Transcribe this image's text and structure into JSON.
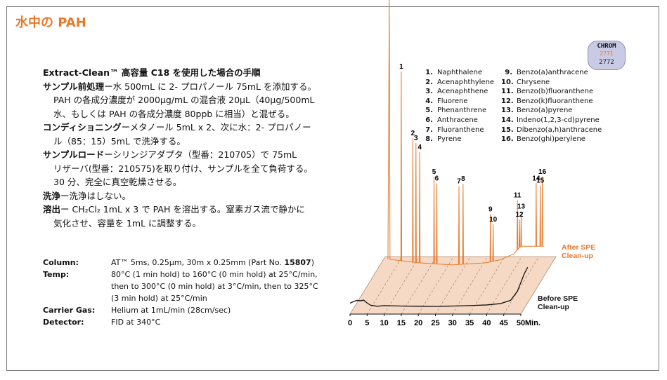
{
  "header": {
    "title": "水中の PAH"
  },
  "logo": {
    "line1": "CHROM",
    "line2": "2771",
    "line3": "2772"
  },
  "procedure": {
    "heading": "Extract-Clean™ 高容量 C18 を使用した場合の手順",
    "sample_prep": {
      "label": "サンプル前処理",
      "line1": "ー水 500mL に 2- プロパノール 75mL を添加する。",
      "line2": "PAH の各成分濃度が 2000μg/mL の混合液 20μL（40μg/500mL",
      "line3": "水、もしくは PAH の各成分濃度 80ppb に相当）と混ぜる。"
    },
    "conditioning": {
      "label": "コンディショニング",
      "line1": "ーメタノール 5mL x 2、次に水：2- プロパノー",
      "line2": "ル（85：15）5mL で洗浄する。"
    },
    "sample_load": {
      "label": "サンプルロード",
      "line1": "ーシリンジアダプタ（型番：210705）で 75mL",
      "line2": "リザーバ(型番：210575)を取り付け、サンプルを全て負荷する。",
      "line3": "30 分、完全に真空乾燥させる。"
    },
    "wash": {
      "label": "洗浄",
      "text": "ー洗浄はしない。"
    },
    "elution": {
      "label": "溶出",
      "line1": "ー CH₂Cl₂ 1mL x 3 で PAH を溶出する。窒素ガス流で静かに",
      "line2": "気化させ、容量を 1mL に調整する。"
    }
  },
  "conditions": {
    "column": {
      "label": "Column:",
      "value_pre": "AT™ 5ms, 0.25μm, 30m x 0.25mm (Part No. ",
      "part_no": "15807",
      "value_post": ")"
    },
    "temp": {
      "label": "Temp:",
      "lines": [
        "80°C (1 min hold) to 160°C (0 min hold) at 25°C/min,",
        "then to 300°C (0 min hold) at 3°C/min, then to 325°C",
        "(3 min hold) at 25°C/min"
      ]
    },
    "carrier_gas": {
      "label": "Carrier Gas:",
      "value": "Helium at 1mL/min (28cm/sec)"
    },
    "detector": {
      "label": "Detector:",
      "value": "FID at 340°C"
    }
  },
  "legend": {
    "items": [
      {
        "n": "1.",
        "name": "Naphthalene"
      },
      {
        "n": "2.",
        "name": "Acenaphthylene"
      },
      {
        "n": "3.",
        "name": "Acenaphthene"
      },
      {
        "n": "4.",
        "name": "Fluorene"
      },
      {
        "n": "5.",
        "name": "Phenanthrene"
      },
      {
        "n": "6.",
        "name": "Anthracene"
      },
      {
        "n": "7.",
        "name": "Fluoranthene"
      },
      {
        "n": "8.",
        "name": "Pyrene"
      },
      {
        "n": "9.",
        "name": "Benzo(a)anthracene"
      },
      {
        "n": "10.",
        "name": "Chrysene"
      },
      {
        "n": "11.",
        "name": "Benzo(b)fluoranthene"
      },
      {
        "n": "12.",
        "name": "Benzo(k)fluoranthene"
      },
      {
        "n": "13.",
        "name": "Benzo(a)pyrene"
      },
      {
        "n": "14.",
        "name": "Indeno(1,2,3-cd)pyrene"
      },
      {
        "n": "15.",
        "name": "Dibenzo(a,h)anthracene"
      },
      {
        "n": "16.",
        "name": "Benzo(ghi)perylene"
      }
    ]
  },
  "chart_data": {
    "type": "line",
    "xlabel": "Min.",
    "xlim": [
      0,
      50
    ],
    "x_ticks": [
      0,
      5,
      10,
      15,
      20,
      25,
      30,
      35,
      40,
      45,
      50
    ],
    "colors": {
      "after": "#e8792a",
      "before": "#111111",
      "plane": "#f6d9c4"
    },
    "series": [
      {
        "name": "After SPE Clean-up",
        "label_lines": [
          "After SPE",
          "Clean-up"
        ],
        "baseline": [
          [
            11.5,
            2
          ],
          [
            20,
            0.4
          ],
          [
            30,
            -0.6
          ],
          [
            40,
            0.4
          ],
          [
            44,
            1.8
          ],
          [
            48,
            4.5
          ],
          [
            50,
            8
          ]
        ],
        "peaks": [
          {
            "label": "1",
            "x": 15.0,
            "h": 87
          },
          {
            "label": "2",
            "x": 18.4,
            "h": 57
          },
          {
            "label": "3",
            "x": 19.3,
            "h": 55
          },
          {
            "label": "4",
            "x": 20.4,
            "h": 51
          },
          {
            "label": "5",
            "x": 24.6,
            "h": 40
          },
          {
            "label": "6",
            "x": 25.4,
            "h": 37
          },
          {
            "label": "7",
            "x": 31.9,
            "h": 36
          },
          {
            "label": "8",
            "x": 33.1,
            "h": 37
          },
          {
            "label": "9",
            "x": 41.1,
            "h": 22
          },
          {
            "label": "10",
            "x": 41.9,
            "h": 17
          },
          {
            "label": "11",
            "x": 49.0,
            "h": 23
          },
          {
            "label": "12",
            "x": 49.6,
            "h": 13
          },
          {
            "label": "13",
            "x": 50.1,
            "h": 16
          },
          {
            "label": "14",
            "x": 54.5,
            "h": 29
          },
          {
            "label": "15",
            "x": 55.7,
            "h": 28
          },
          {
            "label": "16",
            "x": 56.3,
            "h": 32
          }
        ]
      },
      {
        "name": "Before SPE Clean-up",
        "label_lines": [
          "Before SPE",
          "Clean-up"
        ],
        "points": [
          [
            0,
            0.5
          ],
          [
            1,
            1.2
          ],
          [
            2,
            1.8
          ],
          [
            3,
            1.6
          ],
          [
            4,
            1.9
          ],
          [
            5,
            0.6
          ],
          [
            6,
            -0.4
          ],
          [
            8,
            -0.9
          ],
          [
            10,
            -0.6
          ],
          [
            15,
            -0.8
          ],
          [
            20,
            -0.9
          ],
          [
            25,
            -1.0
          ],
          [
            30,
            -0.8
          ],
          [
            35,
            -0.6
          ],
          [
            40,
            -0.3
          ],
          [
            44,
            0.3
          ],
          [
            47,
            1.8
          ],
          [
            49,
            6
          ],
          [
            50,
            10
          ],
          [
            51,
            14
          ],
          [
            52,
            17
          ]
        ]
      }
    ]
  }
}
